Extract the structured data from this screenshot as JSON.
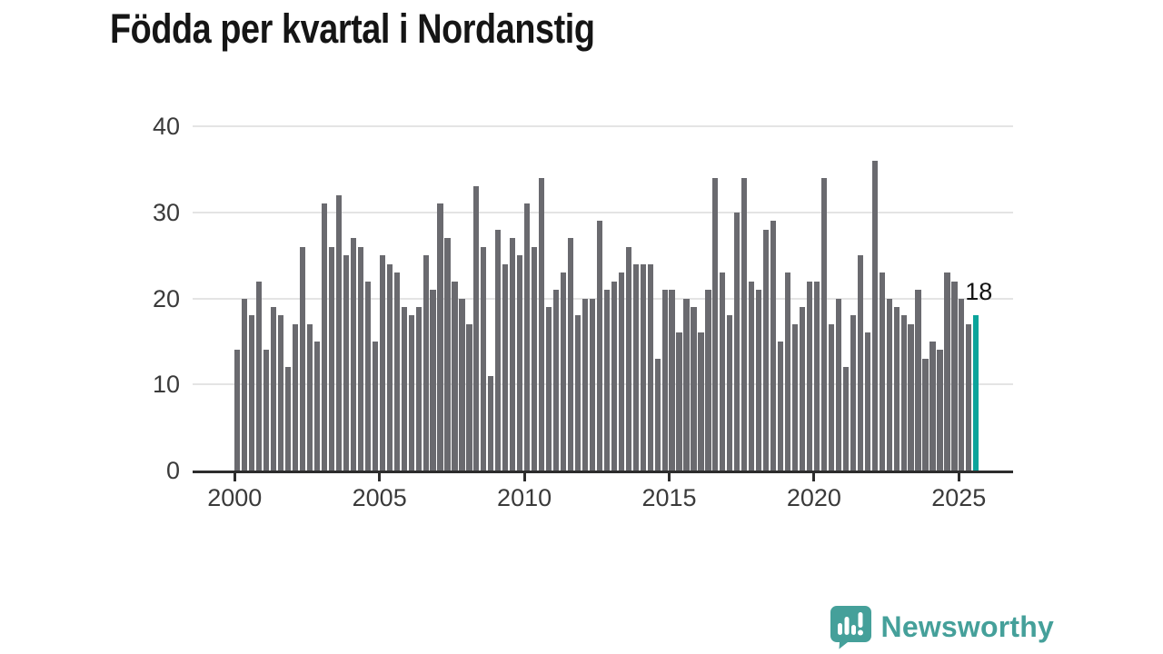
{
  "title": "Födda per kvartal i Nordanstig",
  "annotation": {
    "last_value_label": "18"
  },
  "y_axis": {
    "tick_labels": [
      "0",
      "10",
      "20",
      "30",
      "40"
    ]
  },
  "x_axis": {
    "tick_labels": [
      "2000",
      "2005",
      "2010",
      "2015",
      "2020",
      "2025"
    ]
  },
  "branding": {
    "name": "Newsworthy"
  },
  "colors": {
    "bar": "#6a6a6f",
    "highlight": "#0aa49b",
    "brand": "#45a09a",
    "grid": "#e4e4e4",
    "axis": "#2d2d2d",
    "tick_text": "#3a3a3a",
    "title_text": "#151515"
  },
  "chart_data": {
    "type": "bar",
    "title": "Födda per kvartal i Nordanstig",
    "x_start": "2000-Q1",
    "x_end": "2025-Q3",
    "frequency": "quarterly",
    "values": [
      14,
      20,
      18,
      22,
      14,
      19,
      18,
      12,
      17,
      26,
      17,
      15,
      31,
      26,
      32,
      25,
      27,
      26,
      22,
      15,
      25,
      24,
      23,
      19,
      18,
      19,
      25,
      21,
      31,
      27,
      22,
      20,
      17,
      33,
      26,
      11,
      28,
      24,
      27,
      25,
      31,
      26,
      34,
      19,
      21,
      23,
      27,
      18,
      20,
      20,
      29,
      21,
      22,
      23,
      26,
      24,
      24,
      24,
      13,
      21,
      21,
      16,
      20,
      19,
      16,
      21,
      34,
      23,
      18,
      30,
      34,
      22,
      21,
      28,
      29,
      15,
      23,
      17,
      19,
      22,
      22,
      34,
      17,
      20,
      12,
      18,
      25,
      16,
      36,
      23,
      20,
      19,
      18,
      17,
      21,
      13,
      15,
      14,
      23,
      22,
      20,
      17,
      18
    ],
    "highlight_last_bar": true,
    "highlight_value": 18,
    "ylim": [
      0,
      40
    ],
    "yticks": [
      0,
      10,
      20,
      30,
      40
    ],
    "xticks": [
      2000,
      2005,
      2010,
      2015,
      2020,
      2025
    ],
    "grid": true,
    "legend": "none"
  }
}
